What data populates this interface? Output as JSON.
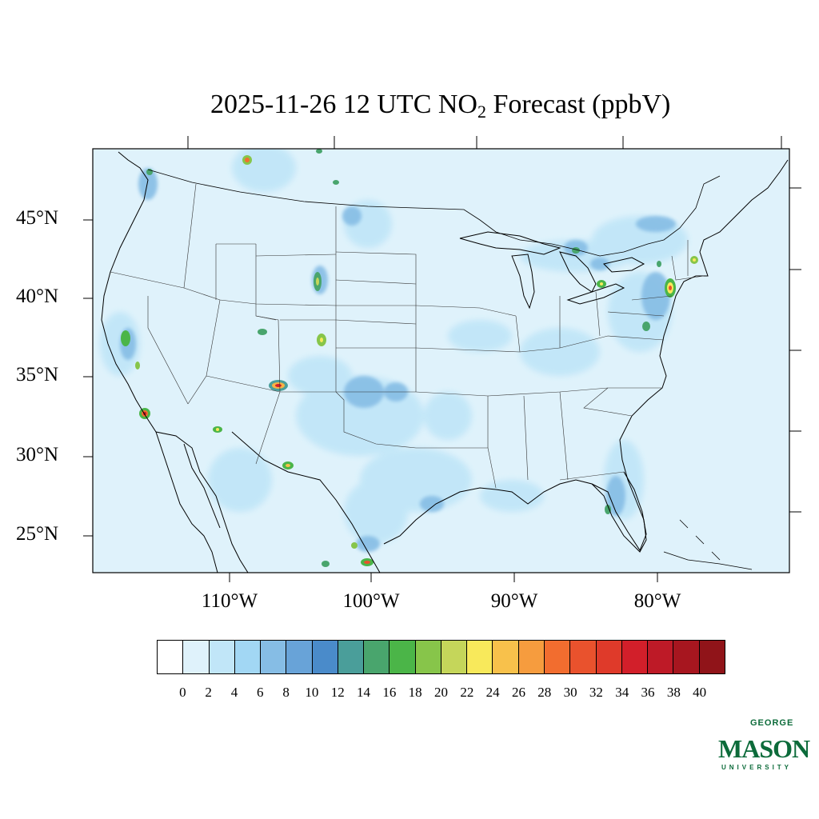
{
  "title": {
    "prefix": "2025-11-26 12 UTC NO",
    "subscript": "2",
    "suffix": " Forecast (ppbV)"
  },
  "lat_labels": [
    "45°N",
    "40°N",
    "35°N",
    "30°N",
    "25°N"
  ],
  "lon_labels": [
    "110°W",
    "100°W",
    "90°W",
    "80°W"
  ],
  "colorbar": {
    "ticks": [
      "0",
      "2",
      "4",
      "6",
      "8",
      "10",
      "12",
      "14",
      "16",
      "18",
      "20",
      "22",
      "24",
      "26",
      "28",
      "30",
      "32",
      "34",
      "36",
      "38",
      "40"
    ],
    "colors": [
      "#ffffff",
      "#dff2fb",
      "#c1e6f8",
      "#a2d7f4",
      "#86bde5",
      "#68a3d8",
      "#4a8bca",
      "#4a9e9a",
      "#49a56d",
      "#4bb548",
      "#87c54a",
      "#c5d65a",
      "#f8e95b",
      "#f8c14b",
      "#f69c3e",
      "#f26d2f",
      "#e9522d",
      "#df3a2a",
      "#d21f2a",
      "#be1a27",
      "#a7161f",
      "#901419"
    ]
  },
  "logo": {
    "top_text": "GEORGE",
    "main_text": "MASON",
    "bottom_text": "UNIVERSITY"
  }
}
